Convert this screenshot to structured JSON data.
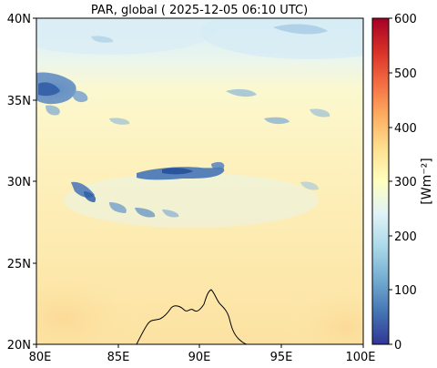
{
  "title": "PAR, global ( 2025-12-05 06:10 UTC)",
  "map": {
    "lat_ticks": [
      "20N",
      "25N",
      "30N",
      "35N",
      "40N"
    ],
    "lon_ticks": [
      "80E",
      "85E",
      "90E",
      "95E",
      "100E"
    ],
    "lat_range": [
      20,
      40
    ],
    "lon_range": [
      80,
      100
    ]
  },
  "colorbar": {
    "label": "[Wm⁻²]",
    "ticks": [
      "0",
      "100",
      "200",
      "300",
      "400",
      "500",
      "600"
    ],
    "range": [
      0,
      600
    ],
    "colormap": "RdYlBu_r"
  }
}
